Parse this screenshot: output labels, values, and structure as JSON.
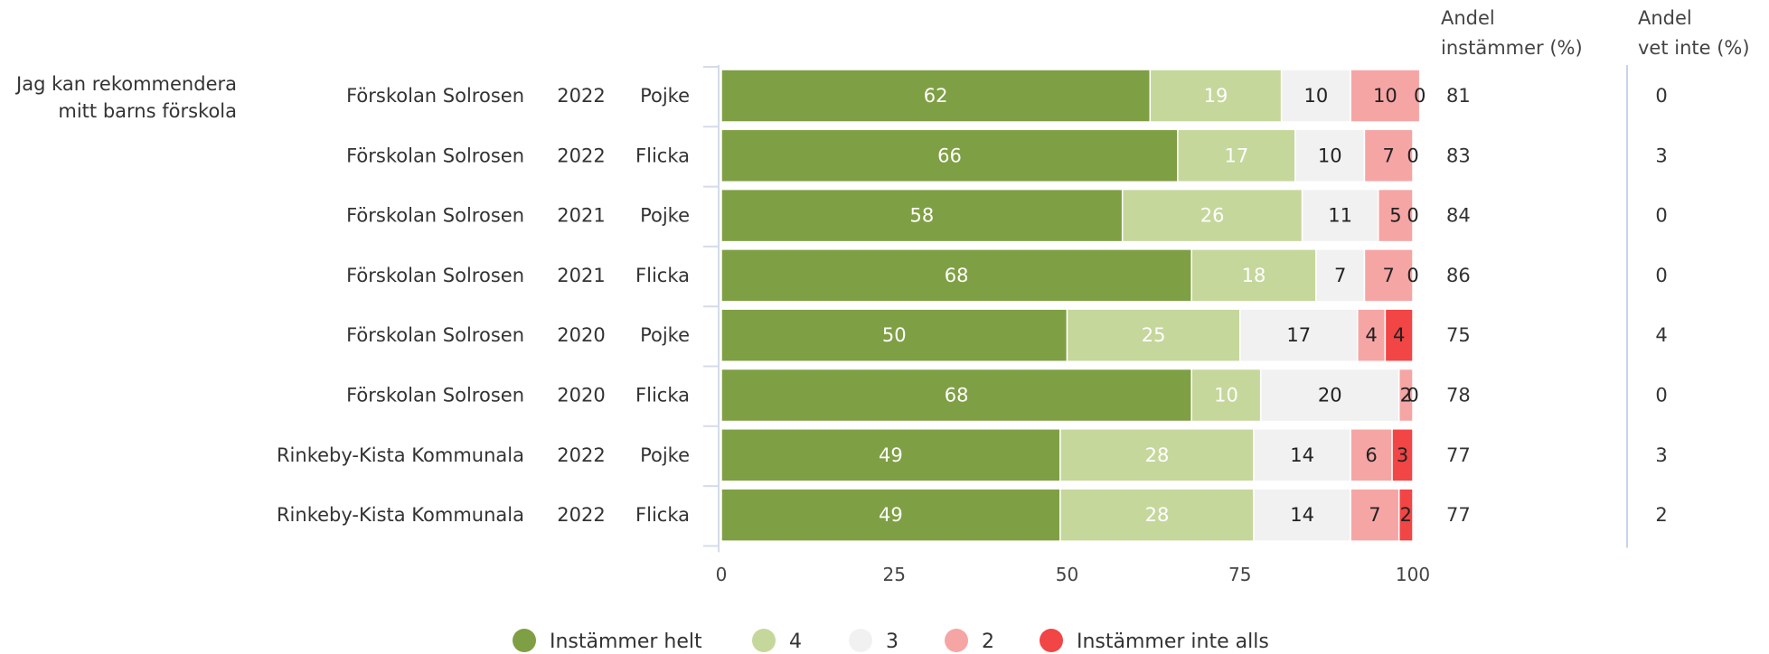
{
  "question": [
    "Jag kan rekommendera",
    "mitt barns förskola"
  ],
  "headers": {
    "agree": [
      "Andel",
      "instämmer (%)"
    ],
    "unknown": [
      "Andel",
      "vet inte (%)"
    ]
  },
  "colors": [
    "#7f9f44",
    "#c5d79b",
    "#f1f1f1",
    "#f6a5a5",
    "#f24545"
  ],
  "chart_data": {
    "type": "bar",
    "orientation": "horizontal",
    "stacked": true,
    "xlim": [
      0,
      100
    ],
    "xticks": [
      "0",
      "25",
      "50",
      "75",
      "100"
    ],
    "legend_position": "bottom",
    "categories": [
      {
        "school": "Förskolan Solrosen",
        "year": "2022",
        "gender": "Pojke"
      },
      {
        "school": "Förskolan Solrosen",
        "year": "2022",
        "gender": "Flicka"
      },
      {
        "school": "Förskolan Solrosen",
        "year": "2021",
        "gender": "Pojke"
      },
      {
        "school": "Förskolan Solrosen",
        "year": "2021",
        "gender": "Flicka"
      },
      {
        "school": "Förskolan Solrosen",
        "year": "2020",
        "gender": "Pojke"
      },
      {
        "school": "Förskolan Solrosen",
        "year": "2020",
        "gender": "Flicka"
      },
      {
        "school": "Rinkeby-Kista Kommunala",
        "year": "2022",
        "gender": "Pojke"
      },
      {
        "school": "Rinkeby-Kista Kommunala",
        "year": "2022",
        "gender": "Flicka"
      }
    ],
    "series": [
      {
        "name": "Instämmer helt",
        "values": [
          62,
          66,
          58,
          68,
          50,
          68,
          49,
          49
        ]
      },
      {
        "name": "4",
        "values": [
          19,
          17,
          26,
          18,
          25,
          10,
          28,
          28
        ]
      },
      {
        "name": "3",
        "values": [
          10,
          10,
          11,
          7,
          17,
          20,
          14,
          14
        ]
      },
      {
        "name": "2",
        "values": [
          10,
          7,
          5,
          7,
          4,
          2,
          6,
          7
        ]
      },
      {
        "name": "Instämmer inte alls",
        "values": [
          0,
          0,
          0,
          0,
          4,
          0,
          3,
          2
        ]
      }
    ],
    "andel_instammer": [
      "81",
      "83",
      "84",
      "86",
      "75",
      "78",
      "77",
      "77"
    ],
    "andel_vet_inte": [
      "0",
      "3",
      "0",
      "0",
      "4",
      "0",
      "3",
      "2"
    ]
  }
}
